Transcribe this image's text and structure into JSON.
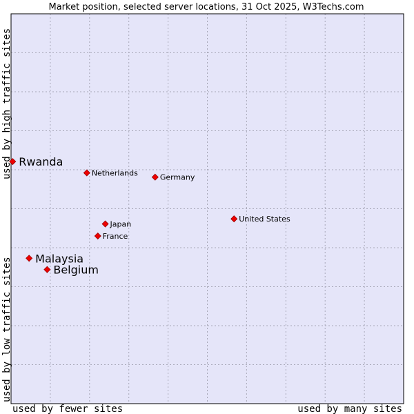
{
  "chart_data": {
    "type": "scatter",
    "title": "Market position, selected server locations, 31 Oct 2025, W3Techs.com",
    "xlabel_left": "used by fewer sites",
    "xlabel_right": "used by many sites",
    "ylabel_bottom": "used by low traffic sites",
    "ylabel_top": "used by high traffic sites",
    "xlim": [
      0,
      100
    ],
    "ylim": [
      0,
      100
    ],
    "grid": true,
    "plot_background": "#e5e5f9",
    "grid_color": "#a8a8b8",
    "point_color": "#ee0000",
    "points": [
      {
        "label": "Rwanda",
        "x": 0.4,
        "y": 62.1,
        "size": "large"
      },
      {
        "label": "Netherlands",
        "x": 19.3,
        "y": 59.2,
        "size": "small"
      },
      {
        "label": "Germany",
        "x": 36.7,
        "y": 58.1,
        "size": "small"
      },
      {
        "label": "United States",
        "x": 56.8,
        "y": 47.4,
        "size": "small"
      },
      {
        "label": "Japan",
        "x": 24.0,
        "y": 46.1,
        "size": "small"
      },
      {
        "label": "France",
        "x": 22.1,
        "y": 43.0,
        "size": "small"
      },
      {
        "label": "Malaysia",
        "x": 4.6,
        "y": 37.3,
        "size": "large"
      },
      {
        "label": "Belgium",
        "x": 9.2,
        "y": 34.4,
        "size": "large"
      }
    ]
  }
}
